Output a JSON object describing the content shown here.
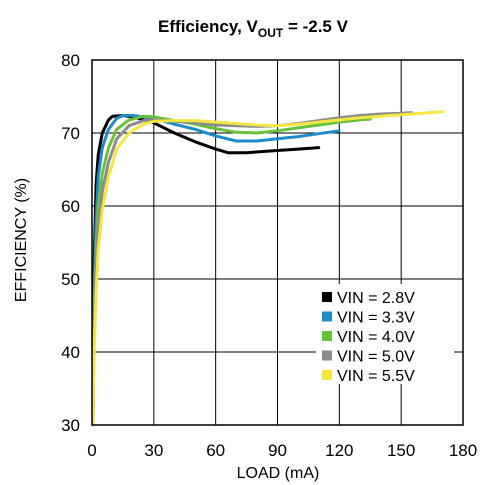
{
  "chart_data": {
    "type": "line",
    "title_main": "Efficiency, V",
    "title_sub": "OUT",
    "title_tail": " = -2.5 V",
    "xlabel": "LOAD (mA)",
    "ylabel": "EFFICIENCY (%)",
    "xlim": [
      0,
      180
    ],
    "ylim": [
      30,
      80
    ],
    "xticks": [
      "0",
      "30",
      "60",
      "90",
      "120",
      "150",
      "180"
    ],
    "yticks": [
      "30",
      "40",
      "50",
      "60",
      "70",
      "80"
    ],
    "grid": true,
    "legend_position": "bottom-right",
    "series": [
      {
        "name": "VIN = 2.8V",
        "color": "#000000",
        "x": [
          0.5,
          1,
          2,
          3,
          5,
          8,
          10,
          15,
          20,
          30,
          40,
          50,
          60,
          66,
          75,
          90,
          100,
          110
        ],
        "y": [
          38,
          52,
          63,
          67,
          70,
          71.8,
          72.3,
          72.4,
          72.2,
          71.4,
          70,
          68.8,
          67.8,
          67.3,
          67.3,
          67.6,
          67.8,
          68.0
        ]
      },
      {
        "name": "VIN = 3.3V",
        "color": "#1f8ac8",
        "x": [
          0.5,
          1,
          2,
          3,
          5,
          8,
          12,
          15,
          20,
          30,
          40,
          50,
          60,
          70,
          80,
          90,
          100,
          110,
          120
        ],
        "y": [
          30,
          48,
          58,
          64,
          68,
          70.5,
          72,
          72.4,
          72.4,
          72,
          71.2,
          70.5,
          69.6,
          68.9,
          68.9,
          69.2,
          69.5,
          69.9,
          70.3
        ]
      },
      {
        "name": "VIN = 4.0V",
        "color": "#6abf3b",
        "x": [
          0.5,
          1,
          2,
          3,
          5,
          8,
          12,
          18,
          25,
          30,
          40,
          50,
          60,
          70,
          80,
          90,
          100,
          110,
          120,
          130,
          135
        ],
        "y": [
          33,
          45,
          54,
          60,
          64.5,
          68,
          70.5,
          71.8,
          72.3,
          72.2,
          71.7,
          71.2,
          70.6,
          70.1,
          70,
          70.3,
          70.7,
          71.1,
          71.5,
          71.8,
          71.9
        ]
      },
      {
        "name": "VIN = 5.0V",
        "color": "#8c8c8c",
        "x": [
          0.5,
          1,
          2,
          3,
          5,
          8,
          12,
          18,
          25,
          30,
          40,
          50,
          60,
          70,
          80,
          90,
          100,
          110,
          120,
          130,
          140,
          150,
          155
        ],
        "y": [
          30,
          44,
          52,
          57,
          62,
          66,
          69.2,
          71,
          71.7,
          71.8,
          71.6,
          71.4,
          71.1,
          71,
          70.9,
          71,
          71.3,
          71.7,
          72.1,
          72.4,
          72.6,
          72.7,
          72.8
        ]
      },
      {
        "name": "VIN = 5.5V",
        "color": "#f5e642",
        "x": [
          0.5,
          1,
          2,
          3,
          5,
          8,
          12,
          18,
          25,
          30,
          40,
          50,
          60,
          70,
          80,
          90,
          100,
          110,
          120,
          130,
          140,
          150,
          160,
          170
        ],
        "y": [
          30,
          40,
          48,
          54,
          59.5,
          64,
          67.8,
          70,
          71.2,
          71.6,
          71.7,
          71.7,
          71.5,
          71.3,
          71.1,
          71,
          71.2,
          71.5,
          71.8,
          72.1,
          72.3,
          72.5,
          72.7,
          72.9
        ]
      }
    ]
  }
}
